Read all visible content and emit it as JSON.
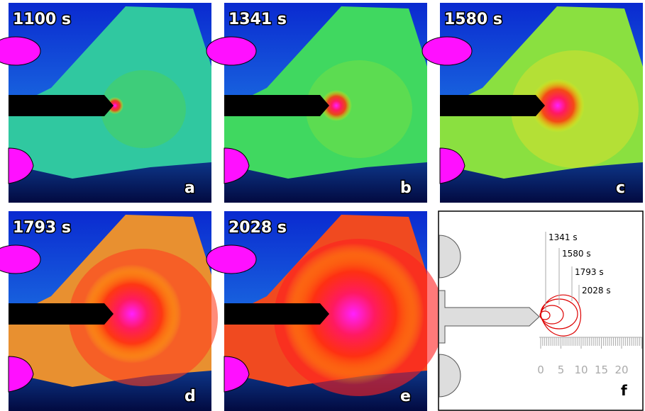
{
  "panels": [
    {
      "time": "1100 s",
      "letter": "a"
    },
    {
      "time": "1341 s",
      "letter": "b"
    },
    {
      "time": "1580 s",
      "letter": "c"
    },
    {
      "time": "1793 s",
      "letter": "d"
    },
    {
      "time": "2028 s",
      "letter": "e"
    }
  ],
  "diagram": {
    "letter": "f",
    "contour_labels": [
      "1341 s",
      "1580 s",
      "1793 s",
      "2028 s"
    ],
    "scale_ticks": [
      0,
      5,
      10,
      15,
      20
    ]
  }
}
